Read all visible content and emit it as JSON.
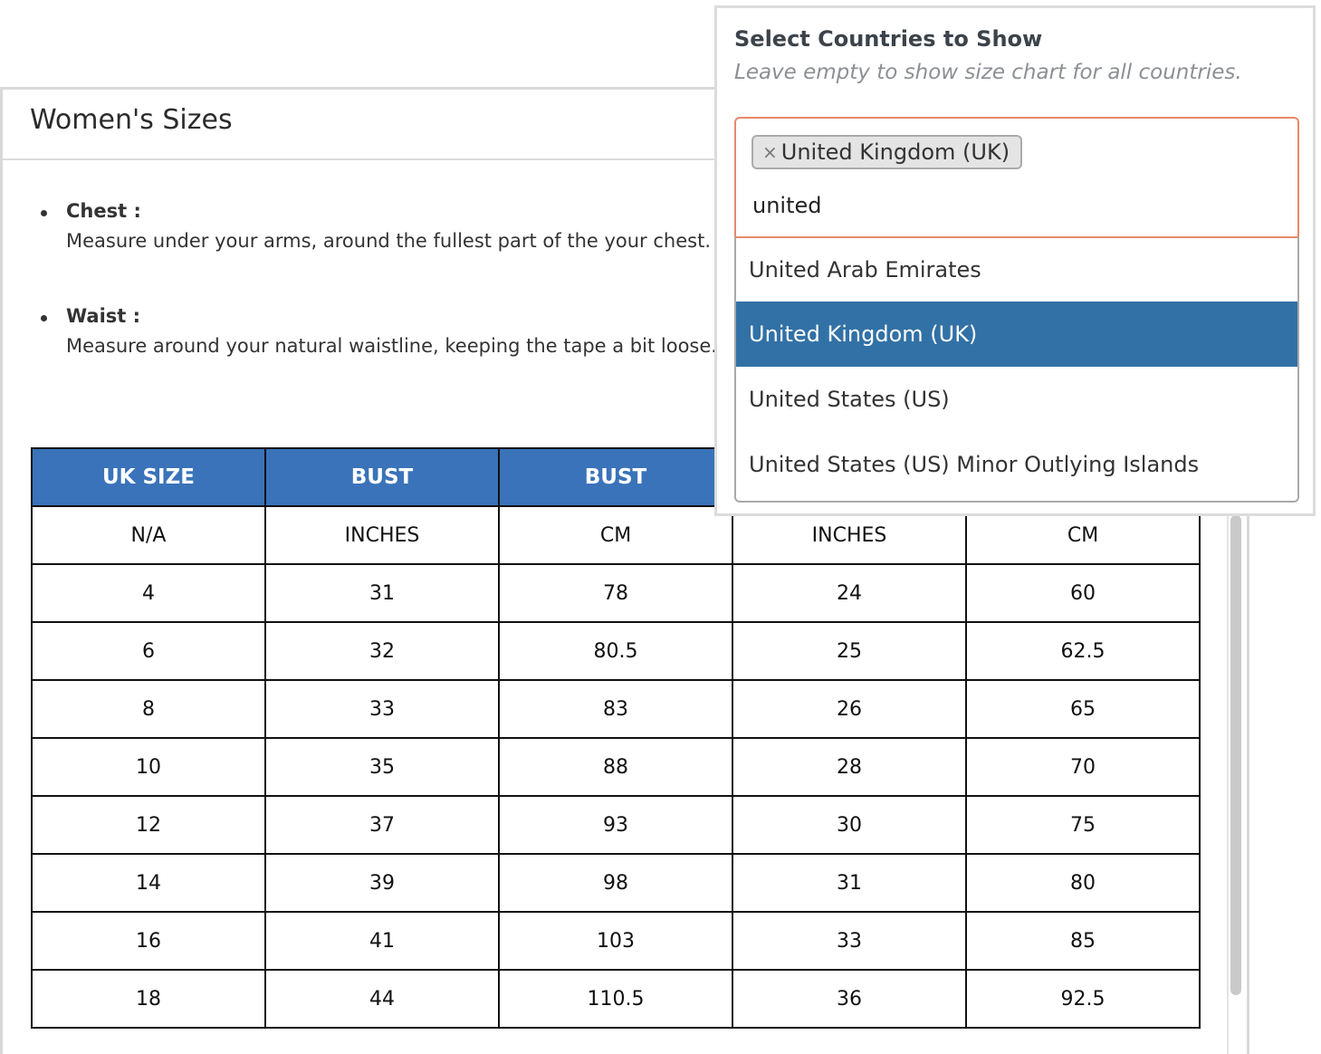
{
  "size_chart": {
    "title": "Women's Sizes",
    "measurements": [
      {
        "label": "Chest :",
        "description": "Measure under your arms, around the fullest part of the your chest."
      },
      {
        "label": "Waist :",
        "description": "Measure around your natural waistline, keeping the tape a bit loose."
      }
    ],
    "table": {
      "headers": [
        "UK SIZE",
        "BUST",
        "BUST",
        "",
        ""
      ],
      "rows": [
        [
          "N/A",
          "INCHES",
          "CM",
          "INCHES",
          "CM"
        ],
        [
          "4",
          "31",
          "78",
          "24",
          "60"
        ],
        [
          "6",
          "32",
          "80.5",
          "25",
          "62.5"
        ],
        [
          "8",
          "33",
          "83",
          "26",
          "65"
        ],
        [
          "10",
          "35",
          "88",
          "28",
          "70"
        ],
        [
          "12",
          "37",
          "93",
          "30",
          "75"
        ],
        [
          "14",
          "39",
          "98",
          "31",
          "80"
        ],
        [
          "16",
          "41",
          "103",
          "33",
          "85"
        ],
        [
          "18",
          "44",
          "110.5",
          "36",
          "92.5"
        ]
      ]
    }
  },
  "country_selector": {
    "title": "Select Countries to Show",
    "hint": "Leave empty to show size chart for all countries.",
    "selected_chip": {
      "remove_glyph": "×",
      "label": "United Kingdom (UK)"
    },
    "search_value": "united",
    "options": [
      {
        "label": "United Arab Emirates",
        "highlighted": false
      },
      {
        "label": "United Kingdom (UK)",
        "highlighted": true
      },
      {
        "label": "United States (US)",
        "highlighted": false
      },
      {
        "label": "United States (US) Minor Outlying Islands",
        "highlighted": false
      }
    ]
  },
  "colors": {
    "table_header": "#3a73b9",
    "option_highlight": "#3271a6",
    "focus_border": "#e8896a"
  }
}
